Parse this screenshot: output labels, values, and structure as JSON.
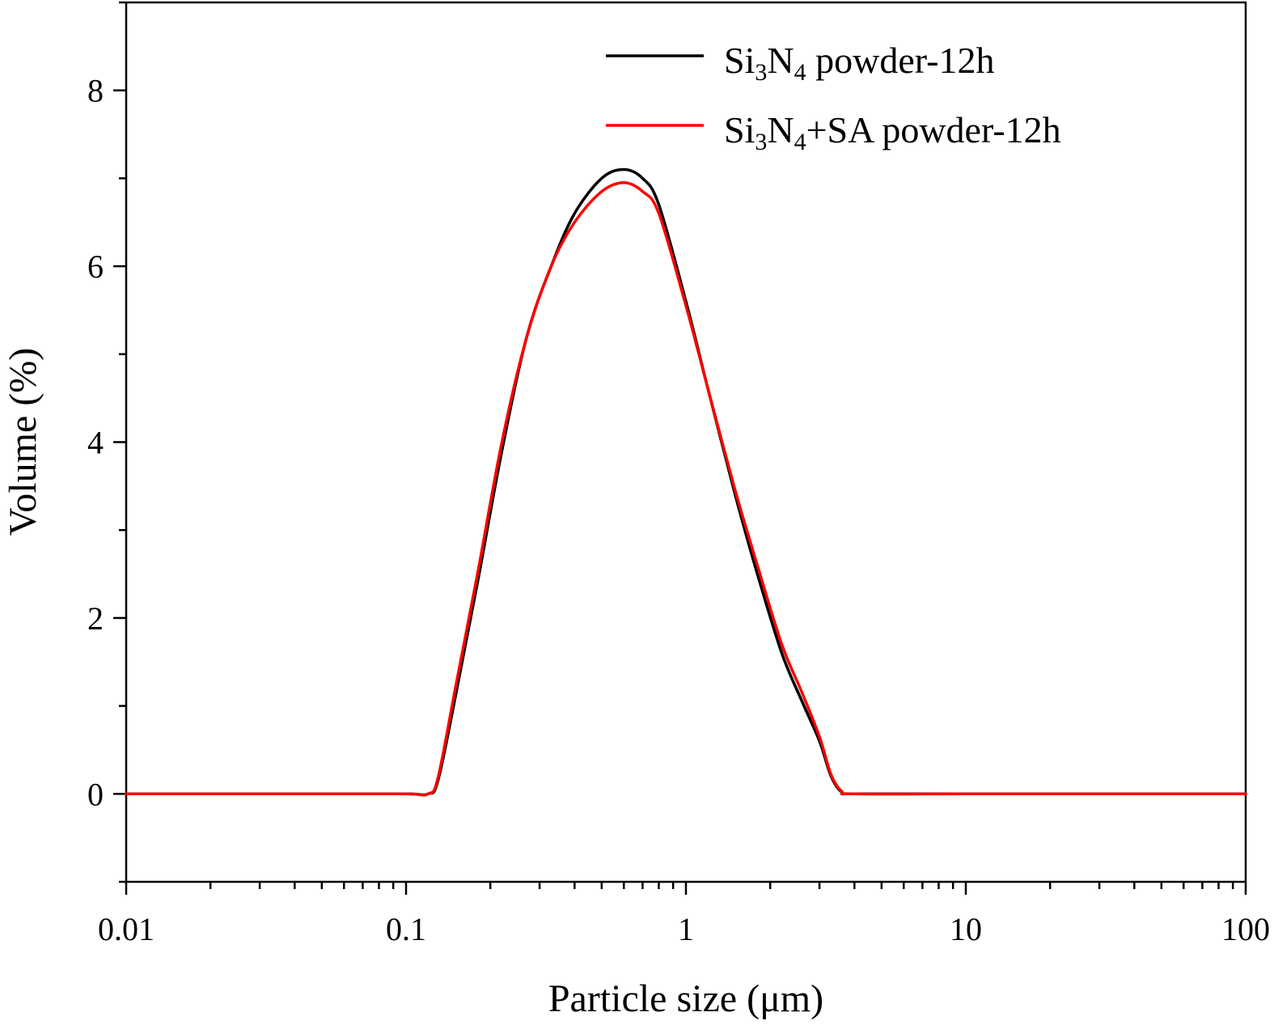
{
  "chart_data": {
    "type": "line",
    "title": "",
    "xlabel": "Particle size (μm)",
    "ylabel": "Volume (%)",
    "xscale": "log",
    "xlim": [
      0.01,
      100
    ],
    "ylim": [
      -1,
      9
    ],
    "xticks": [
      0.01,
      0.1,
      1,
      10,
      100
    ],
    "xtick_labels": [
      "0.01",
      "0.1",
      "1",
      "10",
      "100"
    ],
    "yticks": [
      0,
      2,
      4,
      6,
      8
    ],
    "ytick_labels": [
      "0",
      "2",
      "4",
      "6",
      "8"
    ],
    "grid": false,
    "legend_position": "top-right",
    "series": [
      {
        "name": "Si3N4 powder-12h",
        "legend_parts": [
          {
            "text": "Si",
            "sub": false
          },
          {
            "text": "3",
            "sub": true
          },
          {
            "text": "N",
            "sub": false
          },
          {
            "text": "4",
            "sub": true
          },
          {
            "text": " powder-12h",
            "sub": false
          }
        ],
        "color": "#000000",
        "x": [
          0.01,
          0.05,
          0.1,
          0.12,
          0.13,
          0.15,
          0.18,
          0.22,
          0.27,
          0.33,
          0.4,
          0.5,
          0.6,
          0.7,
          0.8,
          1.0,
          1.2,
          1.5,
          1.8,
          2.2,
          2.6,
          3.0,
          3.3,
          3.6,
          4.0,
          10,
          100
        ],
        "y": [
          0,
          0,
          0,
          0,
          0.15,
          1.1,
          2.4,
          3.9,
          5.2,
          6.0,
          6.6,
          7.0,
          7.1,
          7.0,
          6.7,
          5.6,
          4.6,
          3.4,
          2.5,
          1.6,
          1.05,
          0.6,
          0.2,
          0.02,
          0,
          0,
          0
        ]
      },
      {
        "name": "Si3N4+SA powder-12h",
        "legend_parts": [
          {
            "text": "Si",
            "sub": false
          },
          {
            "text": "3",
            "sub": true
          },
          {
            "text": "N",
            "sub": false
          },
          {
            "text": "4",
            "sub": true
          },
          {
            "text": "+SA powder-12h",
            "sub": false
          }
        ],
        "color": "#ff0000",
        "x": [
          0.01,
          0.05,
          0.1,
          0.12,
          0.13,
          0.15,
          0.18,
          0.22,
          0.27,
          0.33,
          0.4,
          0.5,
          0.6,
          0.7,
          0.8,
          1.0,
          1.2,
          1.5,
          1.8,
          2.2,
          2.6,
          3.0,
          3.3,
          3.6,
          4.0,
          10,
          100
        ],
        "y": [
          0,
          0,
          0,
          0,
          0.18,
          1.2,
          2.5,
          4.0,
          5.2,
          6.0,
          6.5,
          6.85,
          6.95,
          6.85,
          6.6,
          5.55,
          4.6,
          3.45,
          2.6,
          1.7,
          1.15,
          0.65,
          0.22,
          0.03,
          0,
          0,
          0
        ]
      }
    ]
  }
}
